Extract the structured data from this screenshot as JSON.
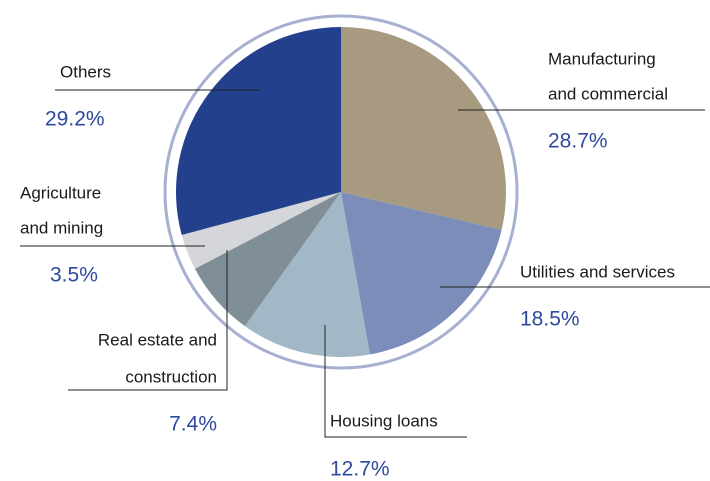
{
  "chart_data": {
    "type": "pie",
    "categories": [
      [
        "Manufacturing",
        "and commercial"
      ],
      [
        "Utilities and services"
      ],
      [
        "Housing loans"
      ],
      [
        "Real estate and",
        "construction"
      ],
      [
        "Agriculture",
        "and mining"
      ],
      [
        "Others"
      ]
    ],
    "values": [
      28.7,
      18.5,
      12.7,
      7.4,
      3.5,
      29.2
    ],
    "value_labels": [
      "28.7%",
      "18.5%",
      "12.7%",
      "7.4%",
      "3.5%",
      "29.2%"
    ],
    "colors": [
      "#a89a80",
      "#7b8db8",
      "#a3b8c6",
      "#7f8e97",
      "#d4d6d9",
      "#22408c"
    ]
  }
}
